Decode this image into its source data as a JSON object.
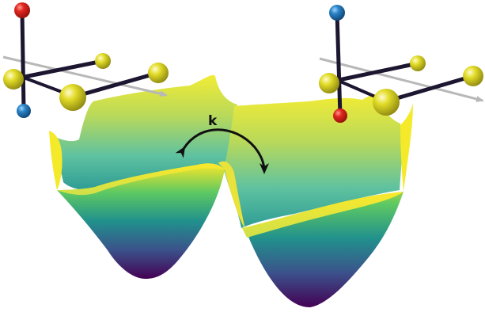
{
  "figure": {
    "rate_label": "k",
    "colormap": [
      "#440154",
      "#3b528b",
      "#21918c",
      "#5ec962",
      "#fde725"
    ],
    "atom_colors": {
      "red": "#e0261f",
      "blue": "#2a83c6",
      "yellow": "#e2dc28",
      "bond": "#1d1630",
      "axis_arrow": "#b8b8b8",
      "rate_arrow": "#111111"
    }
  }
}
